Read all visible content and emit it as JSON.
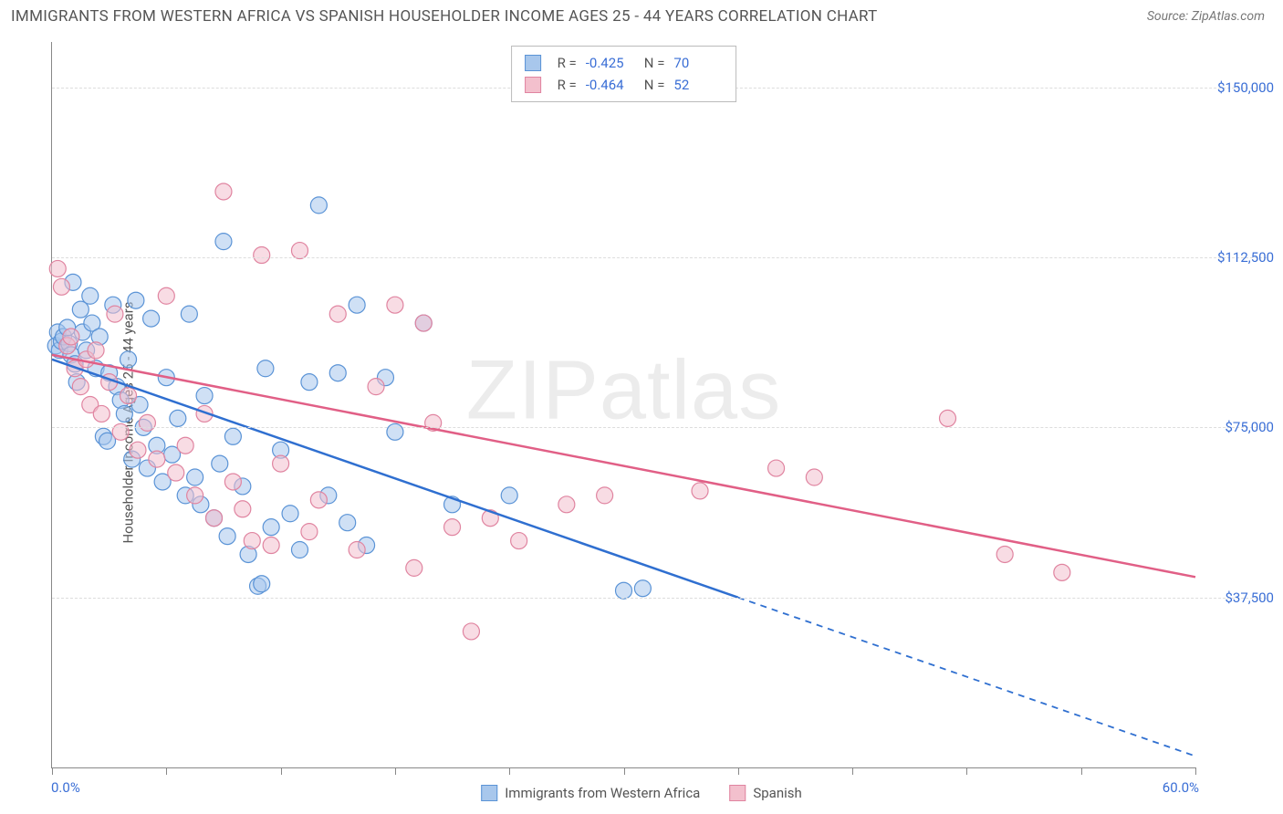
{
  "title": "IMMIGRANTS FROM WESTERN AFRICA VS SPANISH HOUSEHOLDER INCOME AGES 25 - 44 YEARS CORRELATION CHART",
  "source_label": "Source:",
  "source_name": "ZipAtlas.com",
  "watermark": "ZIPatlas",
  "chart": {
    "type": "scatter-with-regression",
    "ylabel": "Householder Income Ages 25 - 44 years",
    "xlim": [
      0,
      60
    ],
    "ylim": [
      0,
      160000
    ],
    "x_unit": "%",
    "xtick_positions": [
      0,
      6,
      12,
      18,
      24,
      30,
      36,
      42,
      48,
      54,
      60
    ],
    "xtick_labels_shown": {
      "left": "0.0%",
      "right": "60.0%"
    },
    "ytick_positions": [
      37500,
      75000,
      112500,
      150000
    ],
    "ytick_labels": [
      "$37,500",
      "$75,000",
      "$112,500",
      "$150,000"
    ],
    "grid_color": "#dddddd",
    "axis_color": "#888888",
    "background_color": "#ffffff",
    "marker_radius": 9,
    "marker_opacity": 0.55,
    "line_width": 2.5,
    "series": [
      {
        "id": "blue",
        "label": "Immigrants from Western Africa",
        "fill": "#a8c7ec",
        "stroke": "#5a93d6",
        "line_color": "#2f6fd0",
        "R": "-0.425",
        "N": "70",
        "regression": {
          "x1": 0,
          "y1": 90000,
          "x2": 36,
          "y2": 37500,
          "dash_x2": 60,
          "dash_y2": 2500
        },
        "points": [
          [
            0.2,
            93000
          ],
          [
            0.3,
            96000
          ],
          [
            0.4,
            92000
          ],
          [
            0.5,
            94000
          ],
          [
            0.6,
            95000
          ],
          [
            0.8,
            97000
          ],
          [
            0.9,
            93500
          ],
          [
            1.0,
            91000
          ],
          [
            1.1,
            107000
          ],
          [
            1.2,
            89000
          ],
          [
            1.3,
            85000
          ],
          [
            1.5,
            101000
          ],
          [
            1.6,
            96000
          ],
          [
            1.8,
            92000
          ],
          [
            2.0,
            104000
          ],
          [
            2.1,
            98000
          ],
          [
            2.3,
            88000
          ],
          [
            2.5,
            95000
          ],
          [
            2.7,
            73000
          ],
          [
            2.9,
            72000
          ],
          [
            3.0,
            87000
          ],
          [
            3.2,
            102000
          ],
          [
            3.4,
            84000
          ],
          [
            3.6,
            81000
          ],
          [
            3.8,
            78000
          ],
          [
            4.0,
            90000
          ],
          [
            4.2,
            68000
          ],
          [
            4.4,
            103000
          ],
          [
            4.6,
            80000
          ],
          [
            4.8,
            75000
          ],
          [
            5.0,
            66000
          ],
          [
            5.2,
            99000
          ],
          [
            5.5,
            71000
          ],
          [
            5.8,
            63000
          ],
          [
            6.0,
            86000
          ],
          [
            6.3,
            69000
          ],
          [
            6.6,
            77000
          ],
          [
            7.0,
            60000
          ],
          [
            7.2,
            100000
          ],
          [
            7.5,
            64000
          ],
          [
            7.8,
            58000
          ],
          [
            8.0,
            82000
          ],
          [
            8.5,
            55000
          ],
          [
            8.8,
            67000
          ],
          [
            9.0,
            116000
          ],
          [
            9.2,
            51000
          ],
          [
            9.5,
            73000
          ],
          [
            10.0,
            62000
          ],
          [
            10.3,
            47000
          ],
          [
            10.8,
            40000
          ],
          [
            11.0,
            40500
          ],
          [
            11.2,
            88000
          ],
          [
            11.5,
            53000
          ],
          [
            12.0,
            70000
          ],
          [
            12.5,
            56000
          ],
          [
            13.0,
            48000
          ],
          [
            13.5,
            85000
          ],
          [
            14.0,
            124000
          ],
          [
            14.5,
            60000
          ],
          [
            15.0,
            87000
          ],
          [
            15.5,
            54000
          ],
          [
            16.0,
            102000
          ],
          [
            16.5,
            49000
          ],
          [
            17.5,
            86000
          ],
          [
            18.0,
            74000
          ],
          [
            19.5,
            98000
          ],
          [
            21.0,
            58000
          ],
          [
            24.0,
            60000
          ],
          [
            30.0,
            39000
          ],
          [
            31.0,
            39500
          ]
        ]
      },
      {
        "id": "pink",
        "label": "Spanish",
        "fill": "#f3c0cd",
        "stroke": "#e084a0",
        "line_color": "#e15f86",
        "R": "-0.464",
        "N": "52",
        "regression": {
          "x1": 0,
          "y1": 91000,
          "x2": 60,
          "y2": 42000
        },
        "points": [
          [
            0.3,
            110000
          ],
          [
            0.5,
            106000
          ],
          [
            0.8,
            93000
          ],
          [
            1.0,
            95000
          ],
          [
            1.2,
            88000
          ],
          [
            1.5,
            84000
          ],
          [
            1.8,
            90000
          ],
          [
            2.0,
            80000
          ],
          [
            2.3,
            92000
          ],
          [
            2.6,
            78000
          ],
          [
            3.0,
            85000
          ],
          [
            3.3,
            100000
          ],
          [
            3.6,
            74000
          ],
          [
            4.0,
            82000
          ],
          [
            4.5,
            70000
          ],
          [
            5.0,
            76000
          ],
          [
            5.5,
            68000
          ],
          [
            6.0,
            104000
          ],
          [
            6.5,
            65000
          ],
          [
            7.0,
            71000
          ],
          [
            7.5,
            60000
          ],
          [
            8.0,
            78000
          ],
          [
            8.5,
            55000
          ],
          [
            9.0,
            127000
          ],
          [
            9.5,
            63000
          ],
          [
            10.0,
            57000
          ],
          [
            10.5,
            50000
          ],
          [
            11.0,
            113000
          ],
          [
            11.5,
            49000
          ],
          [
            12.0,
            67000
          ],
          [
            13.0,
            114000
          ],
          [
            13.5,
            52000
          ],
          [
            14.0,
            59000
          ],
          [
            15.0,
            100000
          ],
          [
            16.0,
            48000
          ],
          [
            17.0,
            84000
          ],
          [
            18.0,
            102000
          ],
          [
            19.0,
            44000
          ],
          [
            19.5,
            98000
          ],
          [
            20.0,
            76000
          ],
          [
            21.0,
            53000
          ],
          [
            22.0,
            30000
          ],
          [
            23.0,
            55000
          ],
          [
            24.5,
            50000
          ],
          [
            27.0,
            58000
          ],
          [
            29.0,
            60000
          ],
          [
            34.0,
            61000
          ],
          [
            38.0,
            66000
          ],
          [
            40.0,
            64000
          ],
          [
            47.0,
            77000
          ],
          [
            50.0,
            47000
          ],
          [
            53.0,
            43000
          ]
        ]
      }
    ]
  }
}
